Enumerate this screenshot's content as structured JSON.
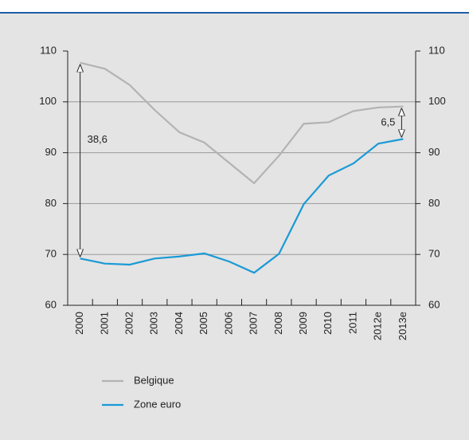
{
  "chart_data": {
    "type": "line",
    "categories": [
      "2000",
      "2001",
      "2002",
      "2003",
      "2004",
      "2005",
      "2006",
      "2007",
      "2008",
      "2009",
      "2010",
      "2011",
      "2012e",
      "2013e"
    ],
    "series": [
      {
        "name": "Belgique",
        "color": "#b3b3b3",
        "values": [
          107.7,
          106.5,
          103.3,
          98.4,
          94.0,
          92.0,
          88.0,
          84.0,
          89.4,
          95.7,
          96.0,
          98.2,
          98.9,
          99.1
        ]
      },
      {
        "name": "Zone euro",
        "color": "#1a9ad6",
        "values": [
          69.2,
          68.2,
          68.0,
          69.2,
          69.6,
          70.2,
          68.6,
          66.4,
          70.1,
          79.9,
          85.5,
          87.9,
          91.8,
          92.7
        ]
      }
    ],
    "ylim": [
      60,
      110
    ],
    "yticks": [
      60,
      70,
      80,
      90,
      100,
      110
    ],
    "y2lim": [
      60,
      110
    ],
    "y2ticks": [
      60,
      70,
      80,
      90,
      100,
      110
    ],
    "grid": true,
    "annotations": [
      "38,6",
      "6,5"
    ]
  }
}
